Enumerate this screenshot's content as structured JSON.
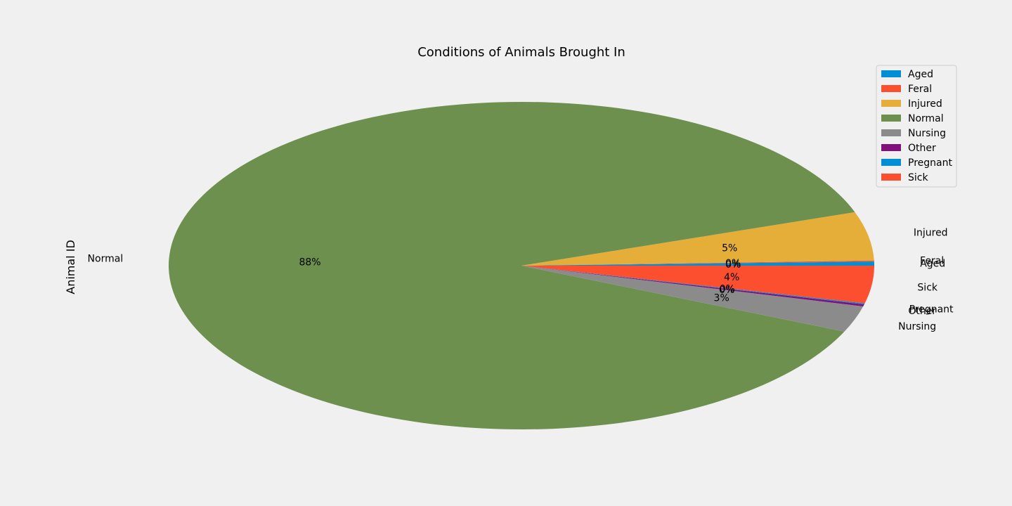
{
  "chart_data": {
    "type": "pie",
    "title": "Conditions of Animals Brought In",
    "ylabel": "Animal ID",
    "legend_position": "top-right",
    "categories": [
      "Aged",
      "Feral",
      "Injured",
      "Normal",
      "Nursing",
      "Other",
      "Pregnant",
      "Sick"
    ],
    "values": [
      0.4,
      0.1,
      4.8,
      88.1,
      2.6,
      0.2,
      0.1,
      3.7
    ],
    "pct_labels": [
      "0%",
      "0%",
      "5%",
      "88%",
      "3%",
      "0%",
      "0%",
      "4%"
    ],
    "colors": [
      "#008fd5",
      "#fc4f30",
      "#e5ae38",
      "#6d904f",
      "#8b8b8b",
      "#810f7c",
      "#008fd5",
      "#fc4f30"
    ],
    "legend": [
      "Aged",
      "Feral",
      "Injured",
      "Normal",
      "Nursing",
      "Other",
      "Pregnant",
      "Sick"
    ]
  }
}
